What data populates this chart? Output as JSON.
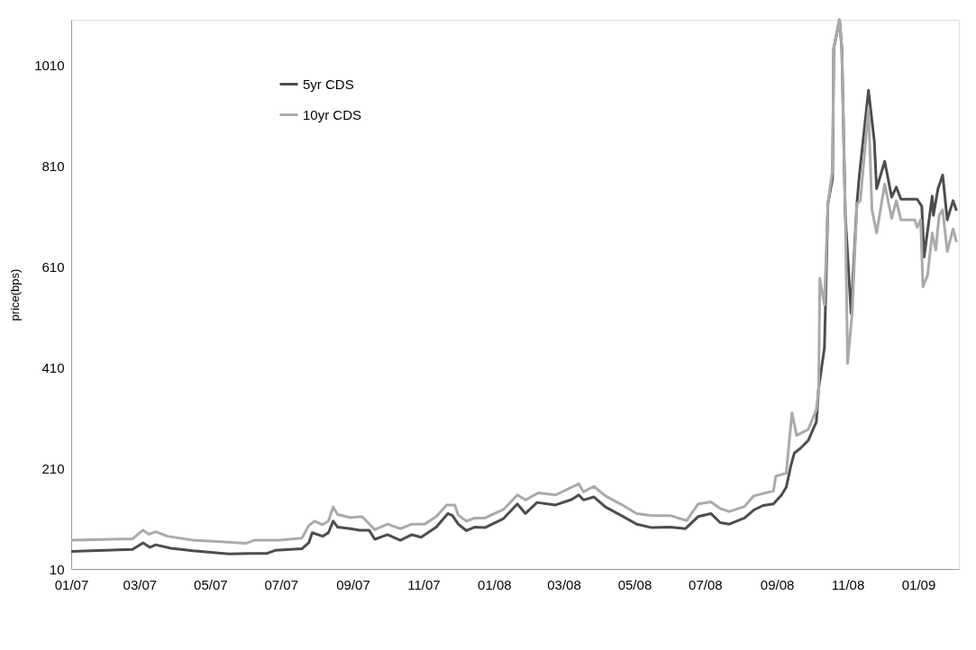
{
  "chart_data": {
    "type": "line",
    "ylabel": "price(bps)",
    "ylim": [
      10,
      1100
    ],
    "yticks": [
      10,
      210,
      410,
      610,
      810,
      1010
    ],
    "xlim": [
      "2007-01-01",
      "2009-02-05"
    ],
    "xticks": [
      {
        "value": "2007-01-01",
        "label": "01/07"
      },
      {
        "value": "2007-03-01",
        "label": "03/07"
      },
      {
        "value": "2007-05-01",
        "label": "05/07"
      },
      {
        "value": "2007-07-01",
        "label": "07/07"
      },
      {
        "value": "2007-09-01",
        "label": "09/07"
      },
      {
        "value": "2007-11-01",
        "label": "11/07"
      },
      {
        "value": "2008-01-01",
        "label": "01/08"
      },
      {
        "value": "2008-03-01",
        "label": "03/08"
      },
      {
        "value": "2008-05-01",
        "label": "05/08"
      },
      {
        "value": "2008-07-01",
        "label": "07/08"
      },
      {
        "value": "2008-09-01",
        "label": "09/08"
      },
      {
        "value": "2008-11-01",
        "label": "11/08"
      },
      {
        "value": "2009-01-01",
        "label": "01/09"
      }
    ],
    "grid": false,
    "legend": "top left",
    "line_style": "solid",
    "marker": "none",
    "series": [
      {
        "name": "5yr CDS",
        "color": "#4d4d4d",
        "x": [
          "2007-01-01",
          "2007-02-23",
          "2007-03-04",
          "2007-03-10",
          "2007-03-15",
          "2007-03-28",
          "2007-04-16",
          "2007-05-17",
          "2007-06-05",
          "2007-06-19",
          "2007-06-26",
          "2007-07-19",
          "2007-07-25",
          "2007-07-28",
          "2007-08-06",
          "2007-08-11",
          "2007-08-15",
          "2007-08-19",
          "2007-08-30",
          "2007-09-07",
          "2007-09-15",
          "2007-09-20",
          "2007-10-01",
          "2007-10-12",
          "2007-10-22",
          "2007-10-30",
          "2007-11-12",
          "2007-11-22",
          "2007-11-26",
          "2007-12-01",
          "2007-12-08",
          "2007-12-15",
          "2007-12-24",
          "2008-01-09",
          "2008-01-21",
          "2008-01-28",
          "2008-02-07",
          "2008-02-23",
          "2008-03-08",
          "2008-03-14",
          "2008-03-18",
          "2008-03-27",
          "2008-04-06",
          "2008-04-19",
          "2008-05-03",
          "2008-05-16",
          "2008-06-01",
          "2008-06-14",
          "2008-06-25",
          "2008-07-06",
          "2008-07-14",
          "2008-07-22",
          "2008-08-04",
          "2008-08-12",
          "2008-08-20",
          "2008-08-29",
          "2008-09-05",
          "2008-09-09",
          "2008-09-13",
          "2008-09-16",
          "2008-09-21",
          "2008-09-28",
          "2008-10-05",
          "2008-10-07",
          "2008-10-12",
          "2008-10-15",
          "2008-10-19",
          "2008-10-20",
          "2008-10-25",
          "2008-10-27",
          "2008-10-30",
          "2008-11-04",
          "2008-11-09",
          "2008-11-11",
          "2008-11-19",
          "2008-11-24",
          "2008-11-26",
          "2008-12-03",
          "2008-12-09",
          "2008-12-13",
          "2008-12-17",
          "2008-12-31",
          "2009-01-04",
          "2009-01-06",
          "2009-01-08",
          "2009-01-13",
          "2009-01-14",
          "2009-01-18",
          "2009-01-22",
          "2009-01-26",
          "2009-01-31",
          "2009-02-03"
        ],
        "values": [
          45,
          49,
          62,
          53,
          58,
          51,
          46,
          40,
          41,
          41,
          47,
          50,
          62,
          82,
          75,
          82,
          105,
          93,
          90,
          87,
          87,
          69,
          78,
          67,
          78,
          73,
          93,
          120,
          116,
          99,
          86,
          93,
          92,
          110,
          139,
          120,
          142,
          137,
          148,
          157,
          147,
          153,
          133,
          117,
          99,
          92,
          93,
          90,
          114,
          120,
          102,
          99,
          111,
          127,
          136,
          139,
          157,
          172,
          215,
          240,
          249,
          265,
          302,
          369,
          449,
          735,
          786,
          1043,
          1100,
          1043,
          712,
          517,
          735,
          789,
          960,
          860,
          765,
          819,
          748,
          768,
          744,
          744,
          730,
          629,
          664,
          750,
          712,
          765,
          792,
          703,
          741,
          721
        ]
      },
      {
        "name": "10yr CDS",
        "color": "#aaaaaa",
        "x": [
          "2007-01-01",
          "2007-02-23",
          "2007-03-04",
          "2007-03-09",
          "2007-03-15",
          "2007-03-25",
          "2007-04-16",
          "2007-05-17",
          "2007-06-01",
          "2007-06-08",
          "2007-06-30",
          "2007-07-19",
          "2007-07-25",
          "2007-07-30",
          "2007-08-06",
          "2007-08-11",
          "2007-08-15",
          "2007-08-19",
          "2007-08-30",
          "2007-09-09",
          "2007-09-20",
          "2007-10-01",
          "2007-10-12",
          "2007-10-22",
          "2007-11-02",
          "2007-11-12",
          "2007-11-21",
          "2007-11-28",
          "2007-12-01",
          "2007-12-08",
          "2007-12-15",
          "2007-12-24",
          "2008-01-09",
          "2008-01-21",
          "2008-01-28",
          "2008-02-08",
          "2008-02-23",
          "2008-03-14",
          "2008-03-18",
          "2008-03-27",
          "2008-04-06",
          "2008-04-19",
          "2008-05-03",
          "2008-05-16",
          "2008-06-01",
          "2008-06-15",
          "2008-06-25",
          "2008-07-06",
          "2008-07-14",
          "2008-07-22",
          "2008-08-04",
          "2008-08-12",
          "2008-08-29",
          "2008-08-31",
          "2008-09-09",
          "2008-09-14",
          "2008-09-18",
          "2008-09-28",
          "2008-10-05",
          "2008-10-07",
          "2008-10-08",
          "2008-10-12",
          "2008-10-15",
          "2008-10-19",
          "2008-10-20",
          "2008-10-25",
          "2008-10-27",
          "2008-10-30",
          "2008-11-01",
          "2008-11-05",
          "2008-11-09",
          "2008-11-12",
          "2008-11-19",
          "2008-11-22",
          "2008-11-26",
          "2008-12-03",
          "2008-12-09",
          "2008-12-13",
          "2008-12-17",
          "2008-12-29",
          "2008-12-31",
          "2009-01-03",
          "2009-01-05",
          "2009-01-09",
          "2009-01-13",
          "2009-01-16",
          "2009-01-19",
          "2009-01-22",
          "2009-01-26",
          "2009-01-31",
          "2009-02-03"
        ],
        "values": [
          67,
          70,
          87,
          79,
          84,
          75,
          67,
          63,
          61,
          67,
          67,
          71,
          96,
          105,
          98,
          105,
          133,
          118,
          112,
          114,
          88,
          99,
          90,
          99,
          99,
          114,
          137,
          137,
          117,
          105,
          111,
          111,
          128,
          157,
          147,
          161,
          157,
          179,
          163,
          174,
          155,
          139,
          120,
          116,
          116,
          106,
          139,
          143,
          130,
          124,
          134,
          155,
          165,
          194,
          200,
          320,
          275,
          287,
          326,
          369,
          587,
          534,
          735,
          803,
          1043,
          1100,
          1043,
          712,
          418,
          520,
          735,
          741,
          925,
          723,
          677,
          774,
          706,
          741,
          703,
          703,
          688,
          703,
          570,
          593,
          677,
          643,
          712,
          723,
          640,
          685,
          659
        ]
      }
    ]
  }
}
